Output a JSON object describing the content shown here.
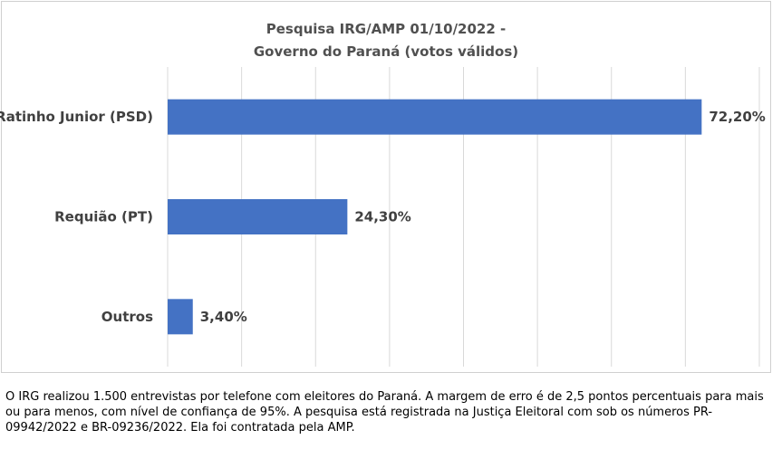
{
  "chart_data": {
    "type": "bar",
    "orientation": "horizontal",
    "title": "Pesquisa IRG/AMP 01/10/2022 -",
    "subtitle": "Governo do Paraná (votos válidos)",
    "categories": [
      "Ratinho Junior (PSD)",
      "Requião (PT)",
      "Outros"
    ],
    "values": [
      72.2,
      24.3,
      3.4
    ],
    "value_labels": [
      "72,20%",
      "24,30%",
      "3,40%"
    ],
    "xlim": [
      0,
      80
    ],
    "grid": true,
    "bar_color": "#4472C4"
  },
  "footnote": "O IRG realizou 1.500 entrevistas por telefone com eleitores do Paraná. A margem de erro é de 2,5 pontos percentuais para mais ou para menos, com nível de confiança de 95%. A pesquisa está registrada na Justiça Eleitoral com sob os números PR-09942/2022 e BR-09236/2022. Ela foi contratada pela AMP."
}
